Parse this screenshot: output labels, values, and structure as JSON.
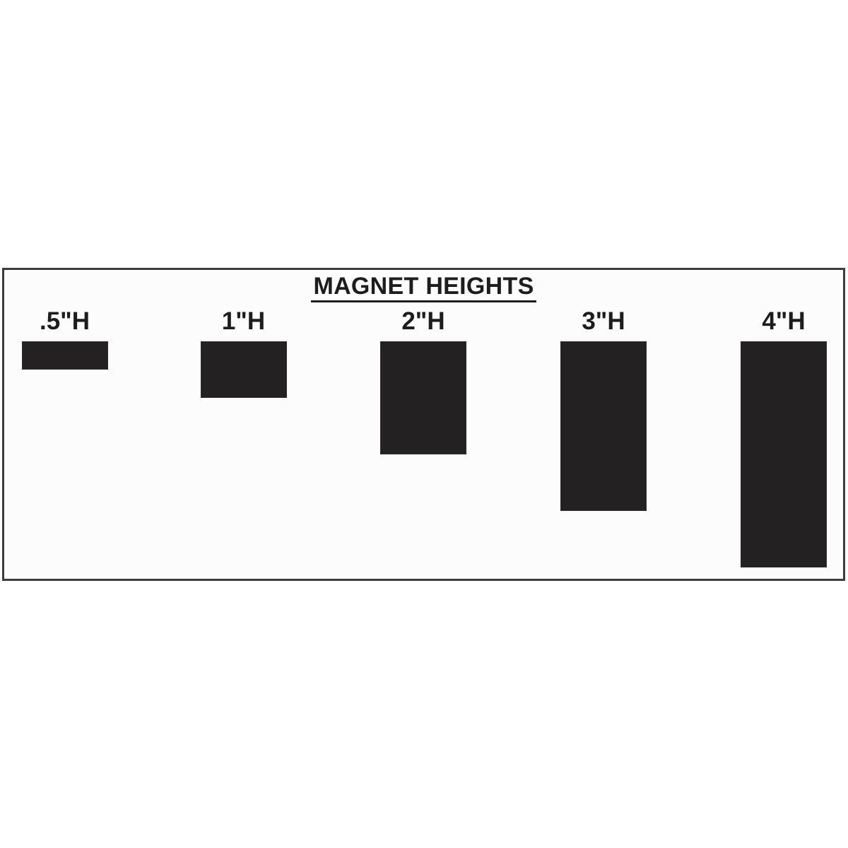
{
  "title": "MAGNET HEIGHTS",
  "magnets": [
    {
      "label": ".5\"H",
      "height_inches": 0.5
    },
    {
      "label": "1\"H",
      "height_inches": 1
    },
    {
      "label": "2\"H",
      "height_inches": 2
    },
    {
      "label": "3\"H",
      "height_inches": 3
    },
    {
      "label": "4\"H",
      "height_inches": 4
    }
  ],
  "colors": {
    "page_background": "#ffffff",
    "panel_background": "#fcfcfc",
    "panel_border": "#3d3d3d",
    "magnet_fill": "#242122",
    "magnet_edge": "#2e2b2c",
    "text": "#1d1d1d"
  }
}
